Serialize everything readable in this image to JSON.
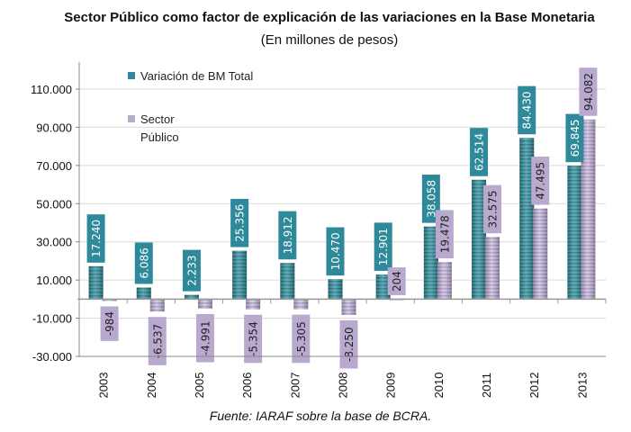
{
  "chart_data": {
    "type": "bar",
    "title": "Sector Público como factor de explicación de las variaciones en la Base Monetaria",
    "subtitle": "(En millones de pesos)",
    "footnote": "Fuente: IARAF sobre la base de BCRA.",
    "categories": [
      "2003",
      "2004",
      "2005",
      "2006",
      "2007",
      "2008",
      "2009",
      "2010",
      "2011",
      "2012",
      "2013"
    ],
    "series": [
      {
        "name": "Variación de BM Total",
        "color": "#2e8a9a",
        "values": [
          17240,
          6086,
          2233,
          25356,
          18912,
          10470,
          12901,
          38058,
          62514,
          84430,
          69845
        ],
        "labels": [
          "17.240",
          "6.086",
          "2.233",
          "25.356",
          "18.912",
          "10.470",
          "12.901",
          "38.058",
          "62.514",
          "84.430",
          "69.845"
        ]
      },
      {
        "name": "Sector Público",
        "name_lines": [
          "Sector",
          "Público"
        ],
        "color": "#b9a9cf",
        "values": [
          -984,
          -6537,
          -4991,
          -5354,
          -5305,
          -8250,
          204,
          19478,
          32575,
          47495,
          94082
        ],
        "labels": [
          "-984",
          "-6.537",
          "-4.991",
          "-5.354",
          "-5.305",
          "-8.250",
          "204",
          "19.478",
          "32.575",
          "47.495",
          "94.082"
        ]
      }
    ],
    "ylim": [
      -30000,
      110000
    ],
    "yticks": [
      "-30.000",
      "-10.000",
      "10.000",
      "30.000",
      "50.000",
      "70.000",
      "90.000",
      "110.000"
    ],
    "ytick_values": [
      -30000,
      -10000,
      10000,
      30000,
      50000,
      70000,
      90000,
      110000
    ],
    "grid": true,
    "legend": "top-left"
  }
}
